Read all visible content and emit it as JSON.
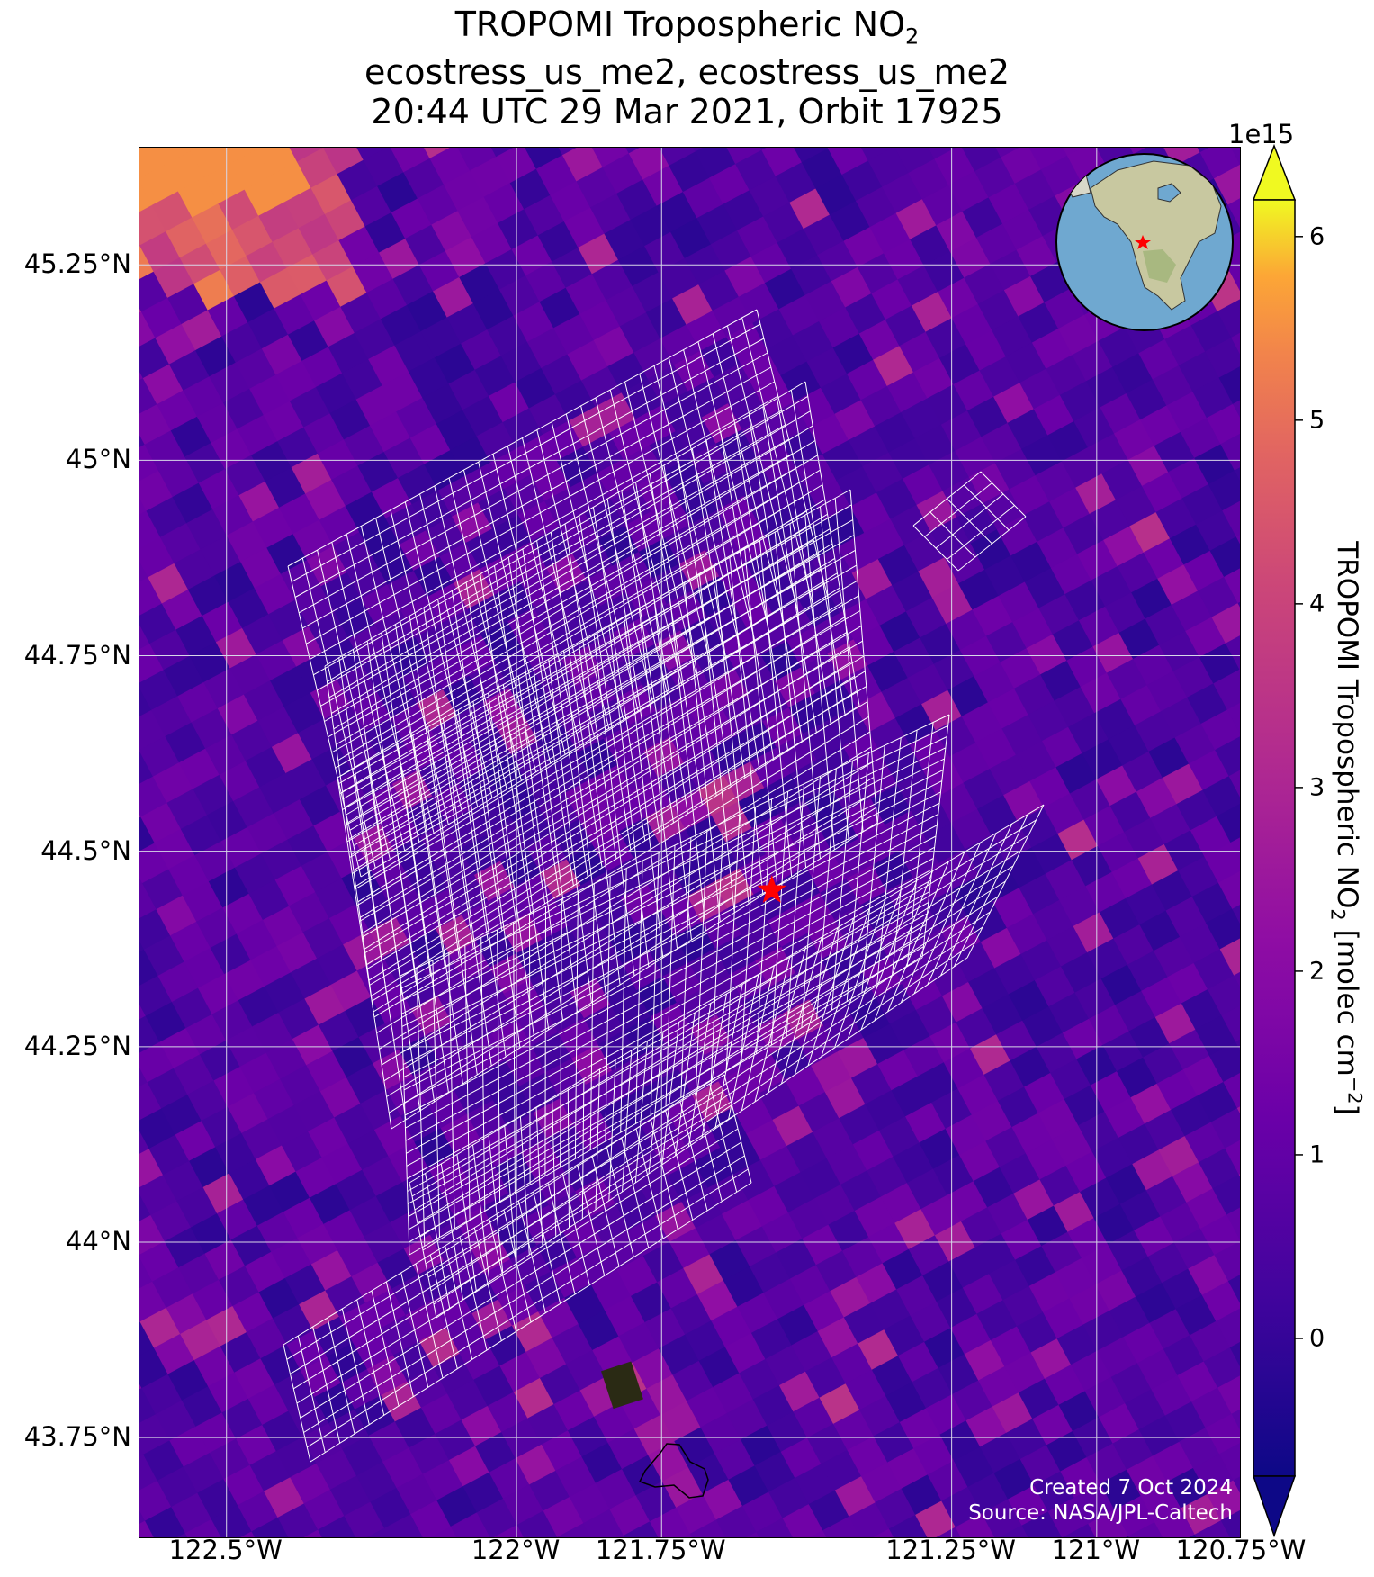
{
  "title": {
    "line1": "TROPOMI Tropospheric NO",
    "line1_sub": "2",
    "line2": "ecostress_us_me2, ecostress_us_me2",
    "line3": "20:44 UTC 29 Mar 2021, Orbit 17925"
  },
  "axes": {
    "lat_ticks": [
      "45.25°N",
      "45°N",
      "44.75°N",
      "44.5°N",
      "44.25°N",
      "44°N",
      "43.75°N"
    ],
    "lat_values": [
      45.25,
      45.0,
      44.75,
      44.5,
      44.25,
      44.0,
      43.75
    ],
    "lon_ticks": [
      "122.5°W",
      "122°W",
      "121.75°W",
      "121.25°W",
      "121°W",
      "120.75°W"
    ],
    "lon_values": [
      -122.5,
      -122.0,
      -121.75,
      -121.25,
      -121.0,
      -120.75
    ],
    "lon_range": [
      -122.65,
      -120.75
    ],
    "lat_range": [
      43.62,
      45.4
    ],
    "grid": true
  },
  "colorbar": {
    "label": "TROPOMI Tropospheric NO",
    "label_sub": "2",
    "label_units": " [molec cm",
    "label_sup": "−2",
    "label_close": "]",
    "offset_text": "1e15",
    "ticks": [
      "0",
      "1",
      "2",
      "3",
      "4",
      "5",
      "6"
    ],
    "tick_values": [
      0,
      1,
      2,
      3,
      4,
      5,
      6
    ],
    "range": [
      -0.75,
      6.2
    ],
    "colormap": "plasma",
    "extend": "both"
  },
  "site_marker": {
    "lon": -121.56,
    "lat": 44.45,
    "color": "#ff0000",
    "icon": "star-icon"
  },
  "inset_globe": {
    "icon": "globe-icon",
    "ocean_color": "#6fa8d0",
    "land_color": "#c8c8a0"
  },
  "credits": {
    "created": "Created 7 Oct 2024",
    "source": "Source: NASA/JPL-Caltech"
  },
  "colors": {
    "grid": "#d8d8e8",
    "footprint_outline": "#ffffff",
    "marker": "#ff0000"
  }
}
